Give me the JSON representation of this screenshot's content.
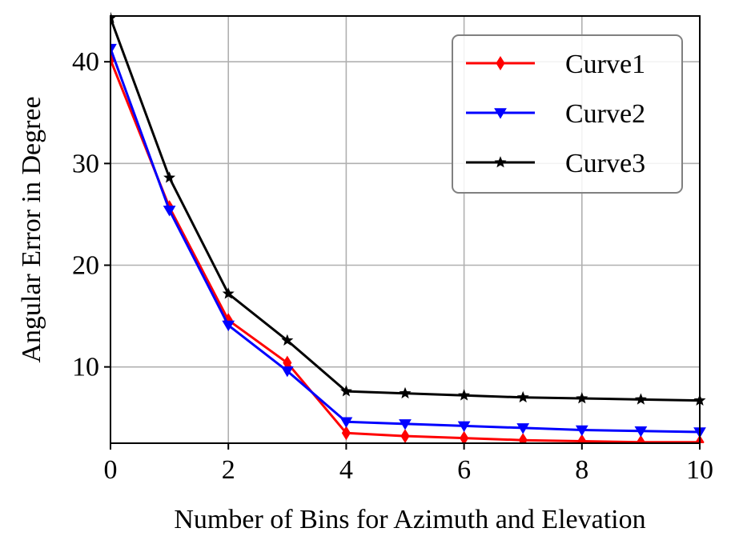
{
  "chart_data": {
    "type": "line",
    "xlabel": "Number of Bins for Azimuth and Elevation",
    "ylabel": "Angular Error in Degree",
    "xlim": [
      0,
      10
    ],
    "ylim": [
      2.5,
      44.5
    ],
    "xticks": [
      0,
      2,
      4,
      6,
      8,
      10
    ],
    "yticks": [
      10,
      20,
      30,
      40
    ],
    "grid": true,
    "legend_position": "top-right",
    "x": [
      0,
      1,
      2,
      3,
      4,
      5,
      6,
      7,
      8,
      9,
      10
    ],
    "series": [
      {
        "name": "Curve1",
        "color": "#ff0000",
        "marker": "diamond",
        "values": [
          40.2,
          25.7,
          14.6,
          10.4,
          3.5,
          3.2,
          3.0,
          2.8,
          2.7,
          2.6,
          2.6
        ]
      },
      {
        "name": "Curve2",
        "color": "#0000ff",
        "marker": "triangle-down",
        "values": [
          41.3,
          25.4,
          14.1,
          9.6,
          4.6,
          4.4,
          4.2,
          4.0,
          3.8,
          3.7,
          3.6
        ]
      },
      {
        "name": "Curve3",
        "color": "#000000",
        "marker": "star",
        "values": [
          44.3,
          28.6,
          17.2,
          12.6,
          7.6,
          7.4,
          7.2,
          7.0,
          6.9,
          6.8,
          6.7
        ]
      }
    ]
  }
}
